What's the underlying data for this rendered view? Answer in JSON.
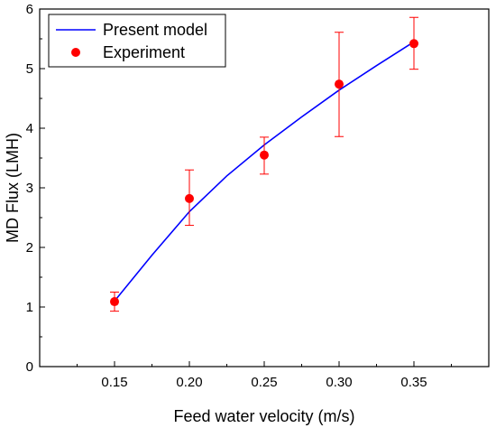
{
  "chart_data": {
    "type": "scatter",
    "title": "",
    "xlabel": "Feed water velocity (m/s)",
    "ylabel": "MD Flux (LMH)",
    "xlim": [
      0.1,
      0.4
    ],
    "ylim": [
      0,
      6
    ],
    "xticks": [
      0.15,
      0.2,
      0.25,
      0.3,
      0.35
    ],
    "xtick_labels": [
      "0.15",
      "0.20",
      "0.25",
      "0.30",
      "0.35"
    ],
    "yticks": [
      0,
      1,
      2,
      3,
      4,
      5,
      6
    ],
    "ytick_labels": [
      "0",
      "1",
      "2",
      "3",
      "4",
      "5",
      "6"
    ],
    "grid": false,
    "legend_position": "top-left",
    "series": [
      {
        "name": "Present model",
        "kind": "line",
        "color": "#0000ff",
        "x": [
          0.15,
          0.175,
          0.2,
          0.225,
          0.25,
          0.275,
          0.3,
          0.325,
          0.35
        ],
        "y": [
          1.1,
          1.87,
          2.6,
          3.2,
          3.72,
          4.19,
          4.64,
          5.05,
          5.45
        ]
      },
      {
        "name": "Experiment",
        "kind": "scatter",
        "color": "#ff0000",
        "x": [
          0.15,
          0.2,
          0.25,
          0.3,
          0.35
        ],
        "y": [
          1.09,
          2.82,
          3.55,
          4.74,
          5.42
        ],
        "err_low": [
          0.93,
          2.37,
          3.23,
          3.86,
          4.99
        ],
        "err_high": [
          1.25,
          3.3,
          3.85,
          5.61,
          5.86
        ]
      }
    ]
  }
}
